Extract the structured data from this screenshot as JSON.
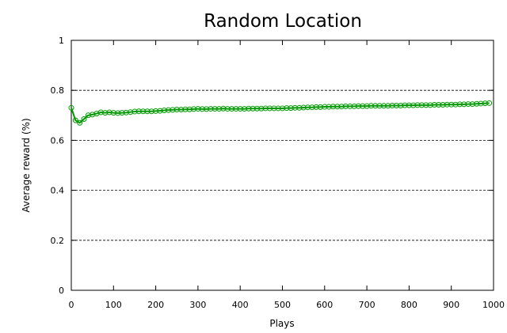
{
  "chart_data": {
    "type": "line",
    "title": "Random Location",
    "xlabel": "Plays",
    "ylabel": "Average reward (%)",
    "xlim": [
      0,
      1000
    ],
    "ylim": [
      0,
      1
    ],
    "xticks": [
      0,
      100,
      200,
      300,
      400,
      500,
      600,
      700,
      800,
      900,
      1000
    ],
    "xtick_labels": [
      "0",
      "100",
      "200",
      "300",
      "400",
      "500",
      "600",
      "700",
      "800",
      "900",
      "1000"
    ],
    "yticks": [
      0,
      0.2,
      0.4,
      0.6,
      0.8,
      1
    ],
    "ytick_labels": [
      "0",
      "0.2",
      "0.4",
      "0.6",
      "0.8",
      "1"
    ],
    "grid": "horizontal-dashed",
    "series": [
      {
        "color": "#009900",
        "marker": "circle",
        "x": [
          0,
          10,
          20,
          30,
          40,
          50,
          60,
          70,
          80,
          90,
          100,
          110,
          120,
          130,
          140,
          150,
          160,
          170,
          180,
          190,
          200,
          210,
          220,
          230,
          240,
          250,
          260,
          270,
          280,
          290,
          300,
          310,
          320,
          330,
          340,
          350,
          360,
          370,
          380,
          390,
          400,
          410,
          420,
          430,
          440,
          450,
          460,
          470,
          480,
          490,
          500,
          510,
          520,
          530,
          540,
          550,
          560,
          570,
          580,
          590,
          600,
          610,
          620,
          630,
          640,
          650,
          660,
          670,
          680,
          690,
          700,
          710,
          720,
          730,
          740,
          750,
          760,
          770,
          780,
          790,
          800,
          810,
          820,
          830,
          840,
          850,
          860,
          870,
          880,
          890,
          900,
          910,
          920,
          930,
          940,
          950,
          960,
          970,
          980,
          990
        ],
        "y": [
          0.73,
          0.68,
          0.67,
          0.685,
          0.7,
          0.703,
          0.707,
          0.712,
          0.71,
          0.712,
          0.71,
          0.709,
          0.71,
          0.711,
          0.713,
          0.715,
          0.716,
          0.716,
          0.716,
          0.716,
          0.717,
          0.718,
          0.72,
          0.721,
          0.722,
          0.723,
          0.723,
          0.724,
          0.724,
          0.725,
          0.726,
          0.725,
          0.725,
          0.726,
          0.726,
          0.726,
          0.727,
          0.726,
          0.726,
          0.726,
          0.726,
          0.726,
          0.727,
          0.727,
          0.727,
          0.727,
          0.728,
          0.728,
          0.728,
          0.728,
          0.728,
          0.729,
          0.729,
          0.73,
          0.73,
          0.731,
          0.732,
          0.732,
          0.733,
          0.733,
          0.734,
          0.734,
          0.735,
          0.735,
          0.735,
          0.736,
          0.736,
          0.736,
          0.737,
          0.737,
          0.737,
          0.738,
          0.738,
          0.738,
          0.738,
          0.738,
          0.739,
          0.739,
          0.739,
          0.74,
          0.74,
          0.74,
          0.741,
          0.741,
          0.741,
          0.741,
          0.742,
          0.742,
          0.742,
          0.743,
          0.743,
          0.743,
          0.744,
          0.744,
          0.745,
          0.745,
          0.746,
          0.747,
          0.748,
          0.749
        ]
      }
    ]
  }
}
